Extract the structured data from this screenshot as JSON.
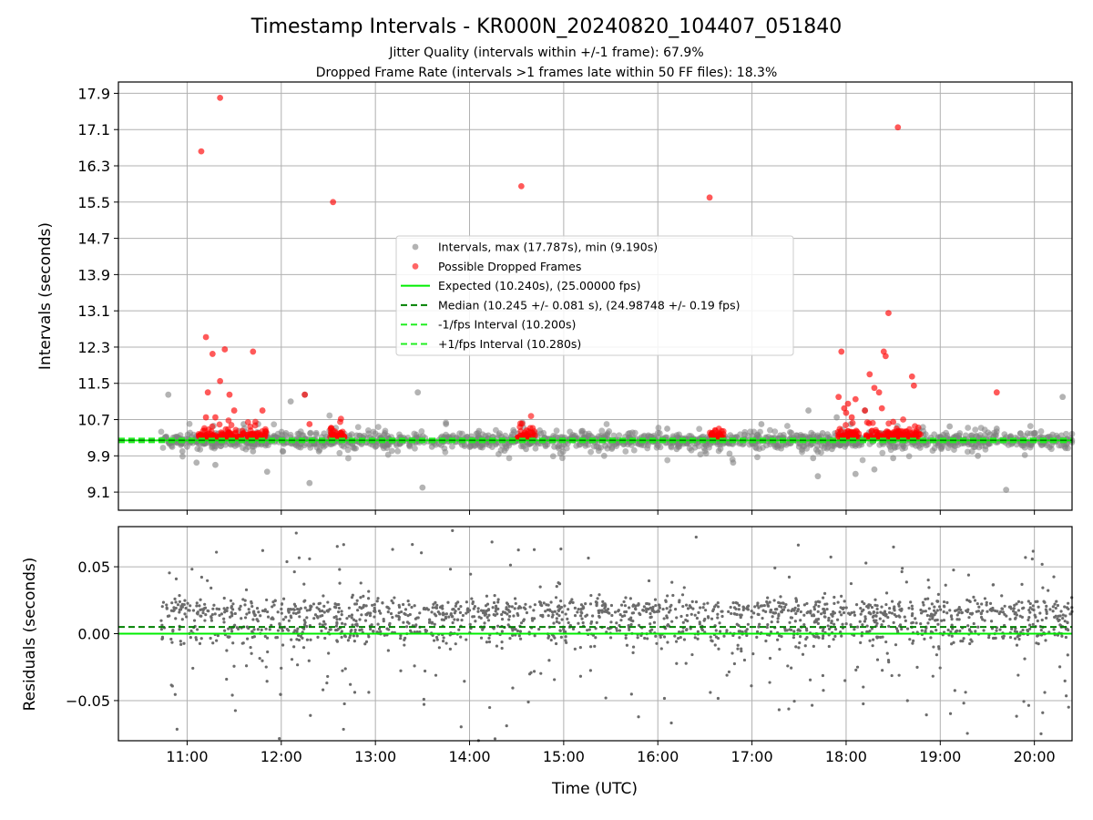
{
  "figure": {
    "title": "Timestamp Intervals - KR000N_20240820_104407_051840",
    "subtitle_1": "Jitter Quality (intervals within +/-1 frame): 67.9%",
    "subtitle_2": "Dropped Frame Rate (intervals >1 frames late within 50 FF files): 18.3%"
  },
  "colors": {
    "intervals": "#808080",
    "dropped": "#ff0000",
    "expected": "#00ee00",
    "median": "#008000",
    "bound": "#22ee22",
    "grid": "#b0b0b0"
  },
  "chart_data": [
    {
      "type": "scatter",
      "xlabel": "",
      "ylabel": "Intervals (seconds)",
      "x_axis": "time (UTC hours)",
      "xlim": [
        10.27,
        20.4
      ],
      "ylim": [
        8.7,
        18.15
      ],
      "yticks": [
        9.1,
        9.9,
        10.7,
        11.5,
        12.3,
        13.1,
        13.9,
        14.7,
        15.5,
        16.3,
        17.1,
        17.9
      ],
      "ytick_labels": [
        "9.1",
        "9.9",
        "10.7",
        "11.5",
        "12.3",
        "13.1",
        "13.9",
        "14.7",
        "15.5",
        "16.3",
        "17.1",
        "17.9"
      ],
      "grid": true,
      "legend_position": "center",
      "legend": [
        {
          "label": "Intervals, max (17.787s), min (9.190s)",
          "kind": "marker",
          "color": "#808080"
        },
        {
          "label": "Possible Dropped Frames",
          "kind": "marker",
          "color": "#ff0000"
        },
        {
          "label": "Expected (10.240s), (25.00000 fps)",
          "kind": "solid",
          "color": "#00ee00"
        },
        {
          "label": "Median (10.245 +/- 0.081 s), (24.98748 +/- 0.19 fps)",
          "kind": "dashed",
          "color": "#008000"
        },
        {
          "label": "-1/fps Interval (10.200s)",
          "kind": "dashed",
          "color": "#22ee22"
        },
        {
          "label": "+1/fps Interval (10.280s)",
          "kind": "dashed",
          "color": "#22ee22"
        }
      ],
      "series": [
        {
          "name": "Intervals, max (17.787s), min (9.190s)",
          "x": [
            10.8,
            10.95,
            11.1,
            11.6,
            11.85,
            12.1,
            12.25,
            12.3,
            12.5,
            13.1,
            13.45,
            13.5,
            13.75,
            14.6,
            15.2,
            16.1,
            16.8,
            17.1,
            17.6,
            17.65,
            17.9,
            18.0,
            18.1,
            18.2,
            18.3,
            18.5,
            18.9,
            19.1,
            19.4,
            19.6,
            19.9,
            20.25,
            20.3,
            11.0,
            11.2,
            11.4,
            11.75,
            11.95,
            12.2,
            12.6,
            13.0,
            13.3,
            13.9,
            14.2,
            14.4,
            14.8,
            15.0,
            15.4,
            15.6,
            15.9,
            16.3,
            16.5,
            16.7,
            17.0,
            17.3,
            17.5,
            17.75,
            17.85,
            18.15,
            18.4,
            18.7,
            19.0,
            19.3,
            19.5,
            19.8,
            20.1,
            10.85,
            11.3,
            11.55,
            11.7,
            12.05,
            12.4,
            12.8,
            13.6,
            14.1,
            14.9,
            15.7,
            16.2,
            17.2,
            17.7,
            18.05,
            18.6,
            19.2,
            19.7,
            20.0
          ],
          "y": [
            11.25,
            10.0,
            9.75,
            10.6,
            9.55,
            11.1,
            11.25,
            9.3,
            10.2,
            10.4,
            11.3,
            9.2,
            10.6,
            10.05,
            10.45,
            10.5,
            9.75,
            10.6,
            10.9,
            9.85,
            10.75,
            10.4,
            9.5,
            10.9,
            9.6,
            9.85,
            10.3,
            10.55,
            9.9,
            10.5,
            10.2,
            10.3,
            11.2,
            10.1,
            10.35,
            10.2,
            10.15,
            10.3,
            10.25,
            10.3,
            10.1,
            10.3,
            10.2,
            10.35,
            10.25,
            10.3,
            10.15,
            10.3,
            10.2,
            10.35,
            10.25,
            10.15,
            10.3,
            10.2,
            10.35,
            10.1,
            10.4,
            10.05,
            10.3,
            10.25,
            10.2,
            10.3,
            10.15,
            10.25,
            10.3,
            10.2,
            10.3,
            9.7,
            10.45,
            10.0,
            10.4,
            10.0,
            10.35,
            10.1,
            10.45,
            10.1,
            10.4,
            10.05,
            10.2,
            9.45,
            10.6,
            10.15,
            10.35,
            9.15,
            10.4
          ]
        },
        {
          "name": "Possible Dropped Frames",
          "x": [
            11.15,
            11.35,
            11.2,
            11.27,
            11.35,
            11.4,
            11.22,
            11.3,
            11.45,
            11.7,
            11.5,
            11.8,
            11.2,
            12.25,
            12.55,
            14.55,
            16.55,
            17.95,
            17.98,
            18.02,
            18.06,
            18.1,
            18.2,
            18.25,
            18.3,
            18.35,
            18.4,
            18.42,
            18.45,
            18.55,
            18.7,
            18.72,
            19.6,
            12.3,
            18.5,
            17.92,
            18.0,
            18.38
          ],
          "y": [
            16.62,
            17.8,
            12.52,
            12.15,
            11.55,
            12.25,
            11.3,
            10.75,
            11.25,
            12.2,
            10.9,
            10.9,
            10.75,
            11.25,
            15.5,
            15.85,
            15.6,
            12.2,
            10.95,
            11.05,
            10.75,
            11.15,
            10.9,
            11.7,
            11.4,
            11.3,
            12.2,
            12.1,
            13.05,
            17.15,
            11.65,
            11.45,
            11.3,
            10.6,
            10.65,
            11.2,
            10.85,
            10.95
          ]
        }
      ],
      "dense_bands": {
        "intervals_x_start": 10.72,
        "intervals_x_end": 20.4,
        "dropped_clusters": [
          [
            11.12,
            11.6
          ],
          [
            11.63,
            11.84
          ],
          [
            12.52,
            12.68
          ],
          [
            14.5,
            14.7
          ],
          [
            16.55,
            16.72
          ],
          [
            17.9,
            18.15
          ],
          [
            18.2,
            18.8
          ]
        ]
      },
      "reference_lines": [
        {
          "name": "Expected (10.240s), (25.00000 fps)",
          "y": 10.24,
          "style": "solid"
        },
        {
          "name": "Median (10.245 +/- 0.081 s), (24.98748 +/- 0.19 fps)",
          "y": 10.245,
          "style": "dashed"
        },
        {
          "name": "-1/fps Interval (10.200s)",
          "y": 10.2,
          "style": "dashed"
        },
        {
          "name": "+1/fps Interval (10.280s)",
          "y": 10.28,
          "style": "dashed"
        }
      ]
    },
    {
      "type": "scatter",
      "xlabel": "Time (UTC)",
      "ylabel": "Residuals (seconds)",
      "xlim": [
        10.27,
        20.4
      ],
      "ylim": [
        -0.08,
        0.08
      ],
      "yticks": [
        -0.05,
        0.0,
        0.05
      ],
      "ytick_labels": [
        "−0.05",
        "0.00",
        "0.05"
      ],
      "xticks": [
        11,
        12,
        13,
        14,
        15,
        16,
        17,
        18,
        19,
        20
      ],
      "xtick_labels": [
        "11:00",
        "12:00",
        "13:00",
        "14:00",
        "15:00",
        "16:00",
        "17:00",
        "18:00",
        "19:00",
        "20:00"
      ],
      "grid": true,
      "series": [
        {
          "name": "",
          "x_range": [
            10.72,
            20.4
          ],
          "y_range": [
            -0.08,
            0.08
          ],
          "center": 0.018
        }
      ],
      "reference_lines": [
        {
          "name": "",
          "y": 0.0,
          "style": "solid"
        },
        {
          "name": "",
          "y": 0.005,
          "style": "dashed"
        }
      ]
    }
  ]
}
